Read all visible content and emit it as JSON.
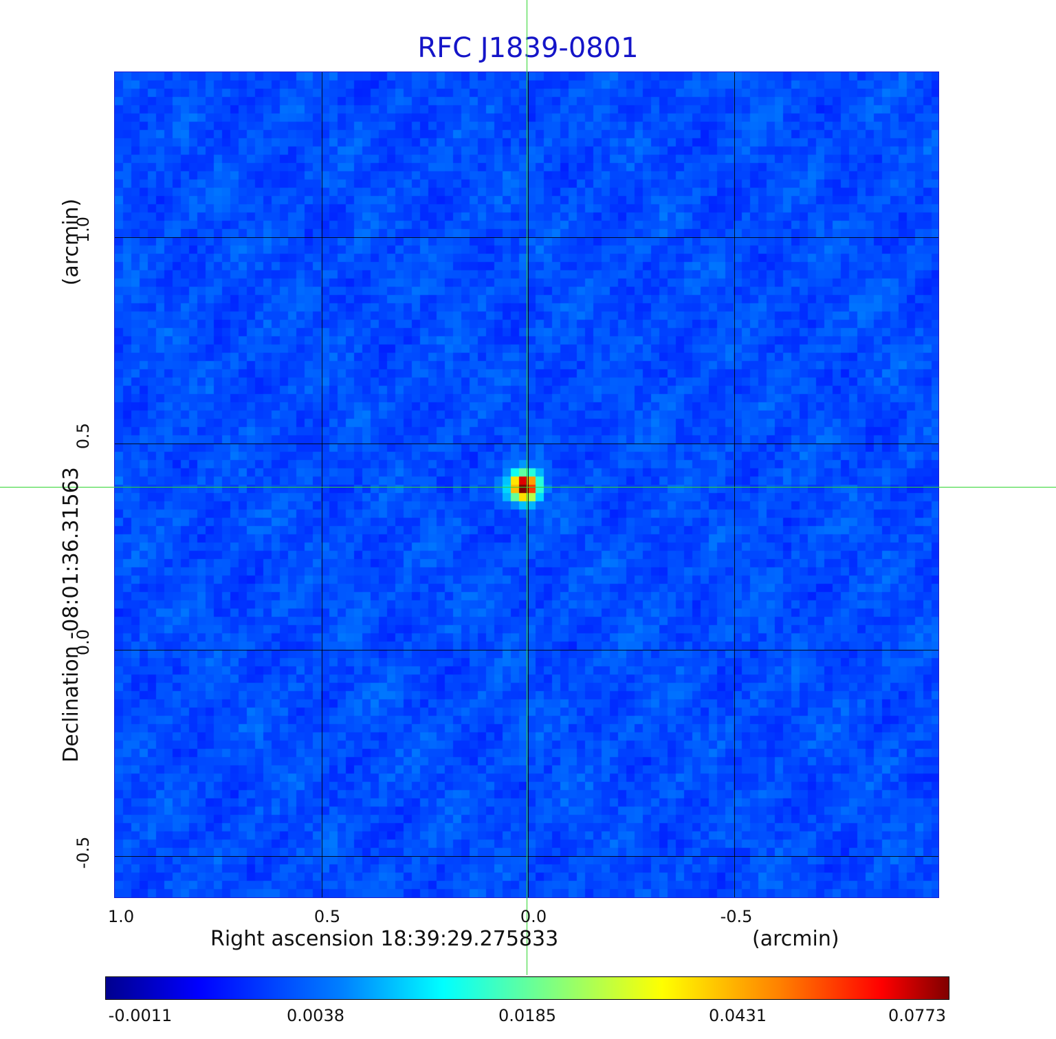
{
  "chart_data": {
    "type": "heatmap",
    "title": "RFC J1839-0801",
    "xlabel": "Right ascension  18:39:29.275833",
    "x_unit": "(arcmin)",
    "ylabel": "Declination  -08:01:36.31563",
    "y_unit": "(arcmin)",
    "xlim": [
      1.0,
      -1.0
    ],
    "ylim": [
      -0.6,
      1.4
    ],
    "x_ticks": [
      "1.0",
      "0.5",
      "0.0",
      "-0.5"
    ],
    "y_ticks": [
      "1.0",
      "0.5",
      "0.0",
      "-0.5"
    ],
    "grid": true,
    "crosshair": {
      "x": 0.0,
      "y": 0.395
    },
    "source_peak": {
      "x": 0.005,
      "y": 0.395,
      "value": 0.0773
    },
    "colormap": "jet",
    "colorbar_ticks": [
      "-0.0011",
      "0.0038",
      "0.0185",
      "0.0431",
      "0.0773"
    ],
    "background_color": "#1d4cf2",
    "crosshair_color": "#2fd62f",
    "title_color": "#1515c8"
  }
}
